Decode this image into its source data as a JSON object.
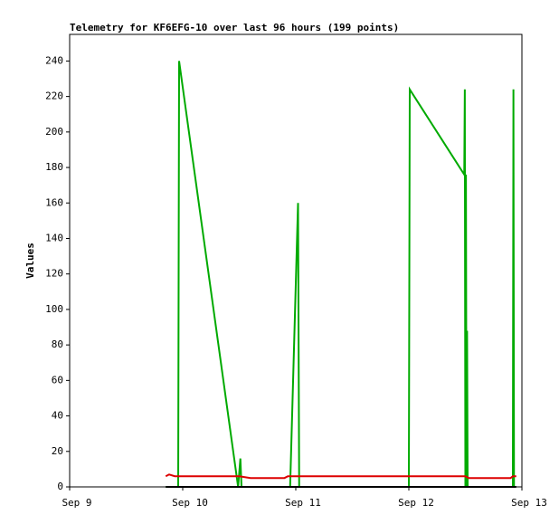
{
  "chart_data": {
    "type": "line",
    "title": "Telemetry for KF6EFG-10 over last 96 hours (199 points)",
    "ylabel": "Values",
    "xlim": [
      9,
      13
    ],
    "xticks": [
      {
        "value": 9,
        "label": "Sep 9"
      },
      {
        "value": 10,
        "label": "Sep 10"
      },
      {
        "value": 11,
        "label": "Sep 11"
      },
      {
        "value": 12,
        "label": "Sep 12"
      },
      {
        "value": 13,
        "label": "Sep 13"
      }
    ],
    "ylim": [
      0,
      255
    ],
    "yticks": [
      0,
      20,
      40,
      60,
      80,
      100,
      120,
      140,
      160,
      180,
      200,
      220,
      240
    ],
    "series": [
      {
        "color": "#00aa00",
        "x": [
          9.85,
          9.96,
          9.968,
          10.49,
          10.51,
          10.52,
          10.95,
          11.02,
          11.03,
          12.0,
          12.008,
          12.49,
          12.495,
          12.5,
          12.505,
          12.51,
          12.515,
          12.52,
          12.92,
          12.925,
          12.93
        ],
        "values": [
          0,
          0,
          240,
          0,
          16,
          0,
          0,
          160,
          0,
          0,
          224,
          176,
          224,
          0,
          176,
          0,
          88,
          0,
          0,
          224,
          0
        ]
      },
      {
        "color": "#dd0000",
        "x": [
          9.85,
          9.88,
          9.93,
          10.5,
          10.6,
          10.9,
          10.93,
          12.5,
          12.53,
          12.9,
          12.92,
          12.95
        ],
        "values": [
          6,
          7,
          6,
          6,
          5,
          5,
          6,
          6,
          5,
          5,
          6,
          6
        ]
      },
      {
        "color": "#000000",
        "x": [
          9.85,
          12.95
        ],
        "values": [
          0,
          0
        ]
      }
    ]
  }
}
